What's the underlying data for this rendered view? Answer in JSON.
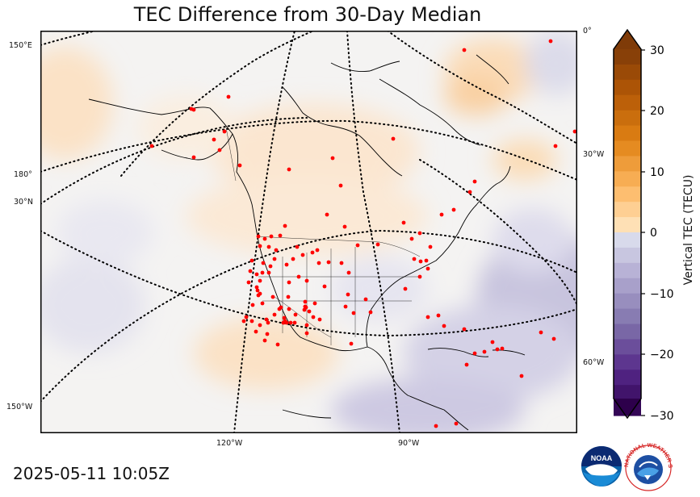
{
  "title": "TEC Difference from 30-Day Median",
  "timestamp": "2025-05-11 10:05Z",
  "map": {
    "projection": "polar-stereographic",
    "region": "North America",
    "graticule_labels": {
      "left": [
        "150°E",
        "180°",
        "30°N",
        "150°W"
      ],
      "right": [
        "0°",
        "30°W",
        "60°W"
      ],
      "bottom": [
        "120°W",
        "90°W"
      ]
    },
    "station_color": "#ff0000"
  },
  "colorbar": {
    "label": "Vertical TEC (TECU)",
    "ticks": [
      "30",
      "20",
      "10",
      "0",
      "−10",
      "−20",
      "−30"
    ],
    "min": -30,
    "max": 30,
    "colormap": "PuOr_r",
    "colors": {
      "max": "#7f3b08",
      "mid": "#f7f7f7",
      "min": "#2d004b"
    }
  },
  "logos": {
    "noaa_text": "NOAA",
    "nws_text": "NATIONAL WEATHER SERVICE"
  }
}
